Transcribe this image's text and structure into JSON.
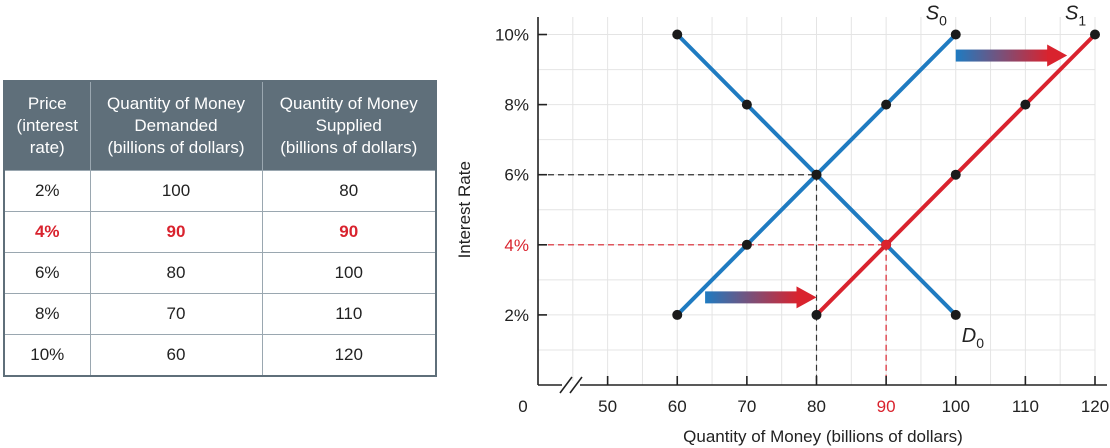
{
  "table": {
    "headers": [
      [
        "Price",
        "(interest",
        "rate)"
      ],
      [
        "Quantity of Money",
        "Demanded",
        "(billions of dollars)"
      ],
      [
        "Quantity of Money",
        "Supplied",
        "(billions of dollars)"
      ]
    ],
    "rows": [
      {
        "rate": "2%",
        "demanded": "100",
        "supplied": "80",
        "highlight": false
      },
      {
        "rate": "4%",
        "demanded": "90",
        "supplied": "90",
        "highlight": true
      },
      {
        "rate": "6%",
        "demanded": "80",
        "supplied": "100",
        "highlight": false
      },
      {
        "rate": "8%",
        "demanded": "70",
        "supplied": "110",
        "highlight": false
      },
      {
        "rate": "10%",
        "demanded": "60",
        "supplied": "120",
        "highlight": false
      }
    ]
  },
  "chart_data": {
    "type": "line",
    "xlabel": "Quantity of Money (billions of dollars)",
    "ylabel": "Interest Rate",
    "xlim": [
      40,
      120
    ],
    "ylim": [
      0,
      10.5
    ],
    "x_ticks": [
      50,
      60,
      70,
      80,
      90,
      100,
      110,
      120
    ],
    "y_ticks": [
      2,
      4,
      6,
      8,
      10
    ],
    "x_origin_label": "0",
    "axis_break": true,
    "grid": true,
    "highlight_tick_x": 90,
    "highlight_tick_y": 4,
    "series": [
      {
        "name": "D0",
        "label": "D",
        "subscript": "0",
        "color": "#1f7bc1",
        "points": [
          [
            60,
            10
          ],
          [
            70,
            8
          ],
          [
            80,
            6
          ],
          [
            90,
            4
          ],
          [
            100,
            2
          ]
        ]
      },
      {
        "name": "S0",
        "label": "S",
        "subscript": "0",
        "color": "#1f7bc1",
        "points": [
          [
            60,
            2
          ],
          [
            70,
            4
          ],
          [
            80,
            6
          ],
          [
            90,
            8
          ],
          [
            100,
            10
          ]
        ]
      },
      {
        "name": "S1",
        "label": "S",
        "subscript": "1",
        "color": "#d9232e",
        "points": [
          [
            80,
            2
          ],
          [
            90,
            4
          ],
          [
            100,
            6
          ],
          [
            110,
            8
          ],
          [
            120,
            10
          ]
        ]
      }
    ],
    "guides": [
      {
        "x": 80,
        "y": 6,
        "color": "#333333"
      },
      {
        "x": 90,
        "y": 4,
        "color": "#d9232e"
      }
    ],
    "arrows": [
      {
        "from": [
          64,
          2.5
        ],
        "to": [
          80,
          2.5
        ]
      },
      {
        "from": [
          100,
          9.4
        ],
        "to": [
          116,
          9.4
        ]
      }
    ]
  }
}
